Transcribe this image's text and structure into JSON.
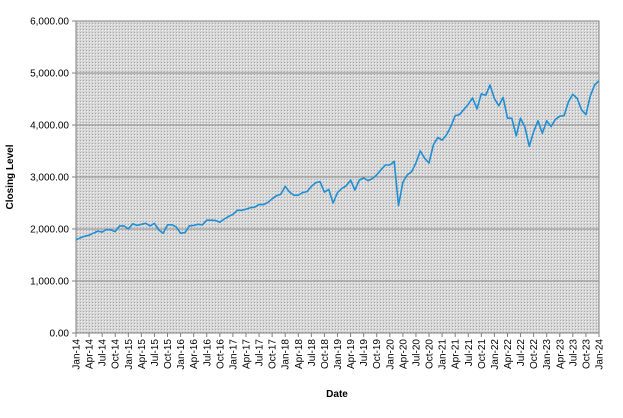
{
  "chart_data": {
    "type": "line",
    "title": "",
    "xlabel": "Date",
    "ylabel": "Closing Level",
    "ylim": [
      0,
      6000
    ],
    "yticks": [
      "0.00",
      "1,000.00",
      "2,000.00",
      "3,000.00",
      "4,000.00",
      "5,000.00",
      "6,000.00"
    ],
    "xticks": [
      "Jan-14",
      "Apr-14",
      "Jul-14",
      "Oct-14",
      "Jan-15",
      "Apr-15",
      "Jul-15",
      "Oct-15",
      "Jan-16",
      "Apr-16",
      "Jul-16",
      "Oct-16",
      "Jan-17",
      "Apr-17",
      "Jul-17",
      "Oct-17",
      "Jan-18",
      "Apr-18",
      "Jul-18",
      "Oct-18",
      "Jan-19",
      "Apr-19",
      "Jul-19",
      "Oct-19",
      "Jan-20",
      "Apr-20",
      "Jul-20",
      "Oct-20",
      "Jan-21",
      "Apr-21",
      "Jul-21",
      "Oct-21",
      "Jan-22",
      "Apr-22",
      "Jul-22",
      "Oct-22",
      "Jan-23",
      "Apr-23",
      "Jul-23",
      "Oct-23",
      "Jan-24"
    ],
    "grid": true,
    "legend": "none",
    "line_color": "#1f8fd6",
    "series": [
      {
        "x": [
          "2014-01",
          "2014-02",
          "2014-03",
          "2014-04",
          "2014-05",
          "2014-06",
          "2014-07",
          "2014-08",
          "2014-09",
          "2014-10",
          "2014-11",
          "2014-12",
          "2015-01",
          "2015-02",
          "2015-03",
          "2015-04",
          "2015-05",
          "2015-06",
          "2015-07",
          "2015-08",
          "2015-09",
          "2015-10",
          "2015-11",
          "2015-12",
          "2016-01",
          "2016-02",
          "2016-03",
          "2016-04",
          "2016-05",
          "2016-06",
          "2016-07",
          "2016-08",
          "2016-09",
          "2016-10",
          "2016-11",
          "2016-12",
          "2017-01",
          "2017-02",
          "2017-03",
          "2017-04",
          "2017-05",
          "2017-06",
          "2017-07",
          "2017-08",
          "2017-09",
          "2017-10",
          "2017-11",
          "2017-12",
          "2018-01",
          "2018-02",
          "2018-03",
          "2018-04",
          "2018-05",
          "2018-06",
          "2018-07",
          "2018-08",
          "2018-09",
          "2018-10",
          "2018-11",
          "2018-12",
          "2019-01",
          "2019-02",
          "2019-03",
          "2019-04",
          "2019-05",
          "2019-06",
          "2019-07",
          "2019-08",
          "2019-09",
          "2019-10",
          "2019-11",
          "2019-12",
          "2020-01",
          "2020-02",
          "2020-03",
          "2020-04",
          "2020-05",
          "2020-06",
          "2020-07",
          "2020-08",
          "2020-09",
          "2020-10",
          "2020-11",
          "2020-12",
          "2021-01",
          "2021-02",
          "2021-03",
          "2021-04",
          "2021-05",
          "2021-06",
          "2021-07",
          "2021-08",
          "2021-09",
          "2021-10",
          "2021-11",
          "2021-12",
          "2022-01",
          "2022-02",
          "2022-03",
          "2022-04",
          "2022-05",
          "2022-06",
          "2022-07",
          "2022-08",
          "2022-09",
          "2022-10",
          "2022-11",
          "2022-12",
          "2023-01",
          "2023-02",
          "2023-03",
          "2023-04",
          "2023-05",
          "2023-06",
          "2023-07",
          "2023-08",
          "2023-09",
          "2023-10",
          "2023-11",
          "2023-12",
          "2024-01"
        ],
        "values": [
          1790,
          1830,
          1860,
          1880,
          1920,
          1960,
          1940,
          1990,
          1980,
          1950,
          2060,
          2060,
          2000,
          2100,
          2070,
          2090,
          2110,
          2060,
          2110,
          1980,
          1920,
          2080,
          2080,
          2040,
          1920,
          1930,
          2060,
          2070,
          2090,
          2080,
          2170,
          2170,
          2165,
          2130,
          2190,
          2240,
          2280,
          2360,
          2360,
          2380,
          2410,
          2420,
          2470,
          2470,
          2510,
          2580,
          2640,
          2670,
          2820,
          2710,
          2650,
          2650,
          2700,
          2720,
          2820,
          2890,
          2910,
          2710,
          2760,
          2500,
          2700,
          2780,
          2830,
          2940,
          2750,
          2940,
          2980,
          2930,
          2970,
          3040,
          3140,
          3230,
          3230,
          3300,
          2450,
          2900,
          3040,
          3100,
          3270,
          3500,
          3360,
          3270,
          3620,
          3760,
          3710,
          3810,
          3970,
          4180,
          4200,
          4300,
          4400,
          4520,
          4310,
          4600,
          4570,
          4770,
          4510,
          4370,
          4530,
          4130,
          4130,
          3790,
          4130,
          3960,
          3590,
          3870,
          4080,
          3840,
          4080,
          3970,
          4110,
          4170,
          4180,
          4450,
          4590,
          4510,
          4290,
          4200,
          4560,
          4770,
          4850
        ]
      }
    ]
  }
}
